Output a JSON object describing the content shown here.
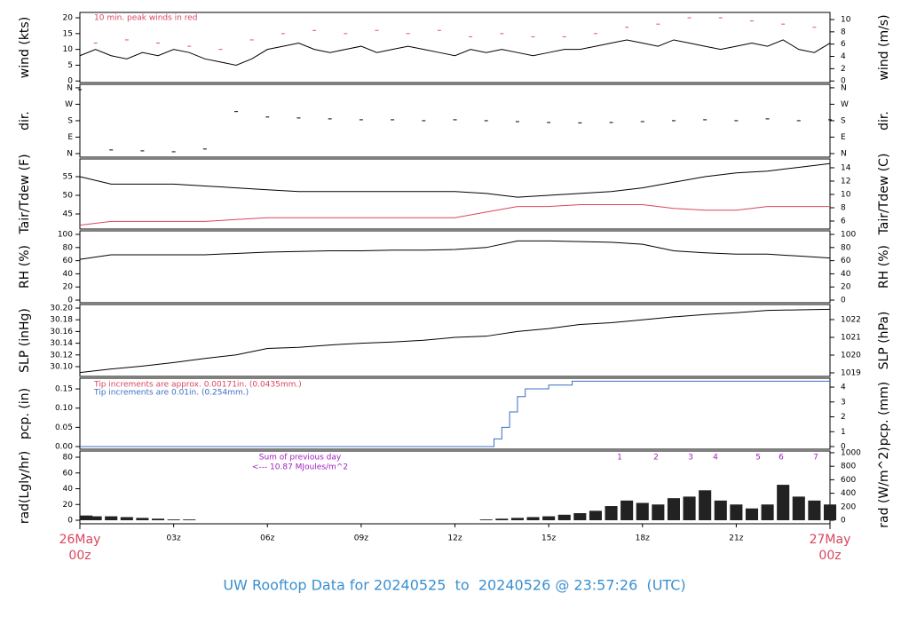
{
  "chart_data": [
    {
      "type": "line",
      "ylabel": "wind (kts)",
      "y2label": "wind (m/s)",
      "annotation": "10 min. peak winds in red",
      "xlim": [
        0,
        24
      ],
      "ylim": [
        -0.5,
        21.7
      ],
      "yticks": [
        0,
        5,
        10,
        15,
        20
      ],
      "y2lim": [
        -0.26,
        11.16
      ],
      "y2ticks": [
        0,
        2,
        4,
        6,
        8,
        10
      ],
      "series": [
        {
          "name": "wind",
          "style": "line",
          "color": "#000000",
          "x": [
            0,
            0.5,
            1,
            1.5,
            2,
            2.5,
            3,
            3.5,
            4,
            4.5,
            5,
            5.5,
            6,
            6.5,
            7,
            7.5,
            8,
            8.5,
            9,
            9.5,
            10,
            10.5,
            11,
            11.5,
            12,
            12.5,
            13,
            13.5,
            14,
            14.5,
            15,
            15.5,
            16,
            16.5,
            17,
            17.5,
            18,
            18.5,
            19,
            19.5,
            20,
            20.5,
            21,
            21.5,
            22,
            22.5,
            23,
            23.5,
            24
          ],
          "values": [
            8,
            10,
            8,
            7,
            9,
            8,
            10,
            9,
            7,
            6,
            5,
            7,
            10,
            11,
            12,
            10,
            9,
            10,
            11,
            9,
            10,
            11,
            10,
            9,
            8,
            10,
            9,
            10,
            9,
            8,
            9,
            10,
            10,
            11,
            12,
            13,
            12,
            11,
            13,
            12,
            11,
            10,
            11,
            12,
            11,
            13,
            10,
            9,
            12
          ]
        },
        {
          "name": "peak",
          "style": "dash",
          "color": "#e05070",
          "x": [
            0.5,
            1.5,
            2.5,
            3.5,
            4.5,
            5.5,
            6.5,
            7.5,
            8.5,
            9.5,
            10.5,
            11.5,
            12.5,
            13.5,
            14.5,
            15.5,
            16.5,
            17.5,
            18.5,
            19.5,
            20.5,
            21.5,
            22.5,
            23.5
          ],
          "values": [
            12,
            13,
            12,
            11,
            10,
            13,
            15,
            16,
            15,
            16,
            15,
            16,
            14,
            15,
            14,
            14,
            15,
            17,
            18,
            20,
            20,
            19,
            18,
            17
          ]
        }
      ]
    },
    {
      "type": "line",
      "ylabel": "dir.",
      "y2label": "dir.",
      "xlim": [
        0,
        24
      ],
      "ylim": [
        -19.5,
        379
      ],
      "yticks": [
        {
          "value": 0,
          "label": "N"
        },
        {
          "value": 90,
          "label": "E"
        },
        {
          "value": 180,
          "label": "S"
        },
        {
          "value": 270,
          "label": "W"
        },
        {
          "value": 360,
          "label": "N"
        }
      ],
      "y2lim": [
        -19.5,
        379
      ],
      "y2ticks": [
        {
          "value": 0,
          "label": "N"
        },
        {
          "value": 90,
          "label": "E"
        },
        {
          "value": 180,
          "label": "S"
        },
        {
          "value": 270,
          "label": "W"
        },
        {
          "value": 360,
          "label": "N"
        }
      ],
      "series": [
        {
          "name": "direction",
          "style": "dash",
          "color": "#000000",
          "x": [
            0,
            1,
            2,
            3,
            4,
            5,
            6,
            7,
            8,
            9,
            10,
            11,
            12,
            13,
            14,
            15,
            16,
            17,
            18,
            19,
            20,
            21,
            22,
            23,
            24
          ],
          "values": [
            350,
            20,
            15,
            10,
            25,
            230,
            200,
            195,
            190,
            185,
            185,
            180,
            185,
            180,
            175,
            170,
            168,
            170,
            175,
            180,
            185,
            180,
            190,
            180,
            185
          ]
        }
      ]
    },
    {
      "type": "line",
      "ylabel": "Tair/Tdew (F)",
      "y2label": "Tair/Tdew (C)",
      "xlim": [
        0,
        24
      ],
      "ylim": [
        40.95,
        59.76
      ],
      "yticks": [
        45,
        50,
        55
      ],
      "y2lim": [
        4.8,
        15.33
      ],
      "y2ticks": [
        6,
        8,
        10,
        12,
        14
      ],
      "series": [
        {
          "name": "Tair",
          "style": "line",
          "color": "#000000",
          "x": [
            0,
            1,
            2,
            3,
            4,
            5,
            6,
            7,
            8,
            9,
            10,
            11,
            12,
            13,
            14,
            15,
            16,
            17,
            18,
            19,
            20,
            21,
            22,
            23,
            24
          ],
          "values": [
            55,
            53,
            53,
            53,
            52.5,
            52,
            51.5,
            51,
            51,
            51,
            51,
            51,
            51,
            50.5,
            49.5,
            50,
            50.5,
            51,
            52,
            53.5,
            55,
            56,
            56.5,
            57.5,
            58.5
          ]
        },
        {
          "name": "Tdew",
          "style": "line",
          "color": "#d9455f",
          "x": [
            0,
            1,
            2,
            3,
            4,
            5,
            6,
            7,
            8,
            9,
            10,
            11,
            12,
            13,
            14,
            15,
            16,
            17,
            18,
            19,
            20,
            21,
            22,
            23,
            24
          ],
          "values": [
            42,
            43,
            43,
            43,
            43,
            43.5,
            44,
            44,
            44,
            44,
            44,
            44,
            44,
            45.5,
            47,
            47,
            47.5,
            47.5,
            47.5,
            46.5,
            46,
            46,
            47,
            47,
            47
          ]
        }
      ]
    },
    {
      "type": "line",
      "ylabel": "RH (%)",
      "y2label": "RH (%)",
      "xlim": [
        0,
        24
      ],
      "ylim": [
        -4,
        105.4
      ],
      "yticks": [
        0,
        20,
        40,
        60,
        80,
        100
      ],
      "y2lim": [
        -4,
        105.4
      ],
      "y2ticks": [
        0,
        20,
        40,
        60,
        80,
        100
      ],
      "series": [
        {
          "name": "RH",
          "style": "line",
          "color": "#000000",
          "x": [
            0,
            1,
            2,
            3,
            4,
            5,
            6,
            7,
            8,
            9,
            10,
            11,
            12,
            13,
            14,
            15,
            16,
            17,
            18,
            19,
            20,
            21,
            22,
            23,
            24
          ],
          "values": [
            62,
            69,
            69,
            69,
            69,
            71,
            73,
            74,
            75,
            75,
            76,
            76,
            77,
            80,
            90,
            90,
            89,
            88,
            85,
            75,
            72,
            70,
            70,
            67,
            64
          ]
        }
      ]
    },
    {
      "type": "line",
      "ylabel": "SLP (inHg)",
      "y2label": "SLP (hPa)",
      "xlim": [
        0,
        24
      ],
      "ylim": [
        30.0833,
        30.2061
      ],
      "yticks": [
        {
          "value": 30.1,
          "label": "30.10"
        },
        30.12,
        30.14,
        30.16,
        30.18,
        {
          "value": 30.2,
          "label": "30.20"
        }
      ],
      "y2lim": [
        1018.8,
        1022.85
      ],
      "y2ticks": [
        1019,
        1020,
        1021,
        1022
      ],
      "series": [
        {
          "name": "SLP",
          "style": "line",
          "color": "#000000",
          "x": [
            0,
            1,
            2,
            3,
            4,
            5,
            6,
            7,
            8,
            9,
            10,
            11,
            12,
            13,
            14,
            15,
            16,
            17,
            18,
            19,
            20,
            21,
            22,
            23,
            24
          ],
          "values": [
            30.09,
            30.096,
            30.101,
            30.107,
            30.114,
            30.12,
            30.131,
            30.133,
            30.137,
            30.14,
            30.142,
            30.145,
            30.15,
            30.152,
            30.16,
            30.165,
            30.172,
            30.175,
            30.18,
            30.185,
            30.189,
            30.192,
            30.196,
            30.197,
            30.198
          ]
        }
      ]
    },
    {
      "type": "line",
      "ylabel": "pcp. (in)",
      "y2label": "pcp. (mm)",
      "xlim": [
        0,
        24
      ],
      "ylim": [
        -0.0069,
        0.1778
      ],
      "yticks": [
        {
          "value": 0,
          "label": "0.00"
        },
        {
          "value": 0.05,
          "label": "0.05"
        },
        {
          "value": 0.1,
          "label": "0.10"
        },
        {
          "value": 0.15,
          "label": "0.15"
        }
      ],
      "y2lim": [
        -0.18,
        4.6
      ],
      "y2ticks": [
        0,
        1,
        2,
        3,
        4
      ],
      "annotations": [
        "Tip increments are approx. 0.00171in. (0.0435mm.)",
        "Tip increments are 0.01in. (0.254mm.)"
      ],
      "series": [
        {
          "name": "precip",
          "style": "step",
          "color": "#3b6fc4",
          "x": [
            0,
            13,
            13.25,
            13.5,
            13.75,
            14,
            14.25,
            15,
            15.75,
            24
          ],
          "values": [
            0,
            0,
            0.02,
            0.05,
            0.09,
            0.13,
            0.15,
            0.16,
            0.17,
            0.17
          ]
        }
      ]
    },
    {
      "type": "bar",
      "ylabel": "rad(Lgly/hr)",
      "y2label": "rad (W/m^2)",
      "xlim": [
        0,
        24
      ],
      "ylim": [
        -4.5,
        87.9
      ],
      "yticks": [
        0,
        20,
        40,
        60,
        80
      ],
      "y2lim": [
        -52.6,
        1026
      ],
      "y2ticks": [
        0,
        200,
        400,
        600,
        800,
        1000
      ],
      "annotations": [
        "Sum of previous day",
        "<--- 10.87 MJoules/m^2"
      ],
      "peak_labels": [
        "1",
        "2",
        "3",
        "4",
        "5",
        "6",
        "7"
      ],
      "xticks": [
        {
          "value": 3,
          "label": "03z"
        },
        {
          "value": 6,
          "label": "06z"
        },
        {
          "value": 9,
          "label": "09z"
        },
        {
          "value": 12,
          "label": "12z"
        },
        {
          "value": 15,
          "label": "15z"
        },
        {
          "value": 18,
          "label": "18z"
        },
        {
          "value": 21,
          "label": "21z"
        }
      ],
      "date_labels": [
        {
          "x": 0,
          "date": "26May",
          "time": "00z"
        },
        {
          "x": 24,
          "date": "27May",
          "time": "00z"
        }
      ],
      "series": [
        {
          "name": "radiation",
          "style": "bar",
          "color": "#222222",
          "x": [
            0,
            0.5,
            1,
            1.5,
            2,
            2.5,
            3,
            3.5,
            4,
            4.5,
            5,
            5.5,
            6,
            6.5,
            7,
            7.5,
            8,
            8.5,
            9,
            9.5,
            10,
            10.5,
            11,
            11.5,
            12,
            12.5,
            13,
            13.5,
            14,
            14.5,
            15,
            15.5,
            16,
            16.5,
            17,
            17.5,
            18,
            18.5,
            19,
            19.5,
            20,
            20.5,
            21,
            21.5,
            22,
            22.5,
            23,
            23.5,
            24
          ],
          "values": [
            6,
            5,
            5,
            4,
            3,
            2,
            1,
            1,
            0,
            0,
            0,
            0,
            0,
            0,
            0,
            0,
            0,
            0,
            0,
            0,
            0,
            0,
            0,
            0,
            0,
            0,
            1,
            2,
            3,
            4,
            5,
            7,
            9,
            12,
            18,
            25,
            22,
            20,
            28,
            30,
            38,
            25,
            20,
            15,
            20,
            45,
            30,
            25,
            20
          ]
        }
      ]
    }
  ],
  "footer": "UW Rooftop Data for 20240525  to  20240526 @ 23:57:26  (UTC)"
}
